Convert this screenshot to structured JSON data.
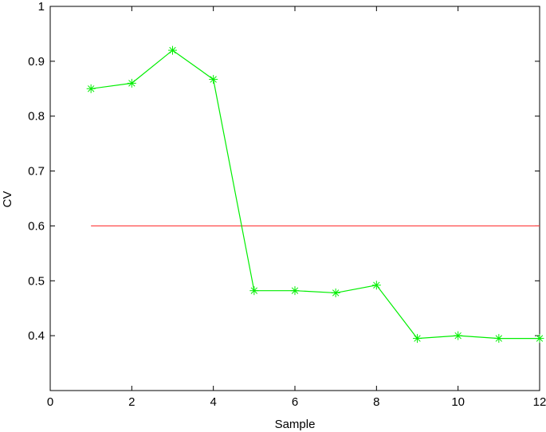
{
  "chart_data": {
    "type": "line",
    "title": "",
    "xlabel": "Sample",
    "ylabel": "CV",
    "xlim": [
      0,
      12
    ],
    "ylim": [
      0.3,
      1.0
    ],
    "x_ticks": [
      0,
      2,
      4,
      6,
      8,
      10,
      12
    ],
    "y_ticks": [
      0.4,
      0.5,
      0.6,
      0.7,
      0.8,
      0.9,
      1
    ],
    "x_tick_labels": [
      "0",
      "2",
      "4",
      "6",
      "8",
      "10",
      "12"
    ],
    "y_tick_labels": [
      "0.4",
      "0.5",
      "0.6",
      "0.7",
      "0.8",
      "0.9",
      "1"
    ],
    "grid": false,
    "series": [
      {
        "color": "#00ee00",
        "marker": "asterisk",
        "x": [
          1,
          2,
          3,
          4,
          5,
          6,
          7,
          8,
          9,
          10,
          11,
          12
        ],
        "y": [
          0.85,
          0.86,
          0.92,
          0.867,
          0.482,
          0.482,
          0.478,
          0.492,
          0.395,
          0.4,
          0.395,
          0.395
        ]
      }
    ],
    "reference_lines": [
      {
        "color": "#ff3b3b",
        "y": 0.6,
        "x_start": 1,
        "x_end": 12
      }
    ]
  }
}
